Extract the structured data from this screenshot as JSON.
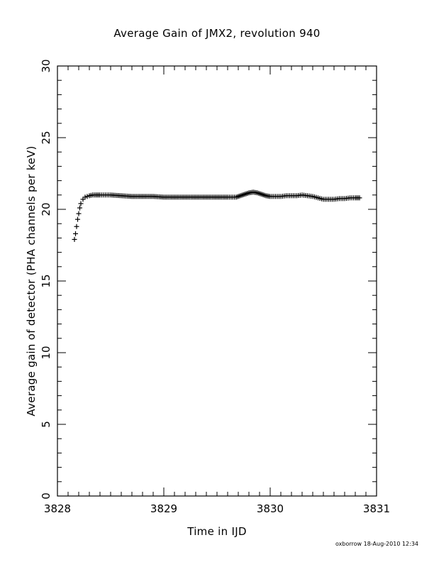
{
  "chart_data": {
    "type": "scatter",
    "title": "Average Gain of JMX2, revolution 940",
    "xlabel": "Time in IJD",
    "ylabel": "Average gain of detector (PHA channels per keV)",
    "xlim": [
      3828,
      3831
    ],
    "ylim": [
      0,
      30
    ],
    "xticks": [
      "3828",
      "3829",
      "3830",
      "3831"
    ],
    "yticks": [
      "0",
      "5",
      "10",
      "15",
      "20",
      "25",
      "30"
    ],
    "marker": "+",
    "grid": false,
    "series": [
      {
        "x": [
          3828.16,
          3828.17,
          3828.18,
          3828.19,
          3828.2,
          3828.21,
          3828.22,
          3828.24,
          3828.26,
          3828.28,
          3828.3,
          3828.33,
          3828.36,
          3828.4,
          3828.45,
          3828.5,
          3828.6,
          3828.7,
          3828.8,
          3828.9,
          3829.0,
          3829.1,
          3829.2,
          3829.3,
          3829.4,
          3829.5,
          3829.6,
          3829.68,
          3829.72,
          3829.76,
          3829.8,
          3829.84,
          3829.88,
          3829.92,
          3829.96,
          3830.0,
          3830.05,
          3830.1,
          3830.15,
          3830.2,
          3830.25,
          3830.3,
          3830.35,
          3830.4,
          3830.45,
          3830.5,
          3830.55,
          3830.6,
          3830.65,
          3830.7,
          3830.75,
          3830.8,
          3830.84
        ],
        "y": [
          17.9,
          18.3,
          18.8,
          19.3,
          19.7,
          20.1,
          20.4,
          20.7,
          20.85,
          20.9,
          20.95,
          21.0,
          21.0,
          21.0,
          21.0,
          21.0,
          20.95,
          20.9,
          20.9,
          20.9,
          20.85,
          20.85,
          20.85,
          20.85,
          20.85,
          20.85,
          20.85,
          20.85,
          20.95,
          21.05,
          21.15,
          21.2,
          21.15,
          21.05,
          20.95,
          20.9,
          20.9,
          20.9,
          20.95,
          20.95,
          20.95,
          21.0,
          20.95,
          20.9,
          20.8,
          20.7,
          20.7,
          20.7,
          20.75,
          20.75,
          20.8,
          20.8,
          20.8
        ]
      }
    ]
  },
  "footer": "oxborrow 18-Aug-2010 12:34"
}
